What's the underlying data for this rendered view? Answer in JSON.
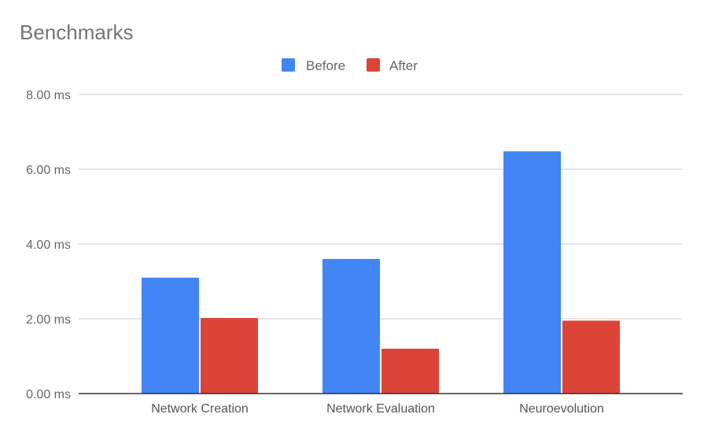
{
  "chart_data": {
    "type": "bar",
    "title": "Benchmarks",
    "categories": [
      "Network Creation",
      "Network Evaluation",
      "Neuroevolution"
    ],
    "series": [
      {
        "name": "Before",
        "color": "#4285f4",
        "values": [
          3.1,
          3.6,
          6.48
        ]
      },
      {
        "name": "After",
        "color": "#db4437",
        "values": [
          2.02,
          1.2,
          1.95
        ]
      }
    ],
    "yticks": [
      "0.00 ms",
      "2.00 ms",
      "4.00 ms",
      "6.00 ms",
      "8.00 ms"
    ],
    "ylim": [
      0,
      8
    ],
    "grid": true,
    "legend_position": "top"
  }
}
